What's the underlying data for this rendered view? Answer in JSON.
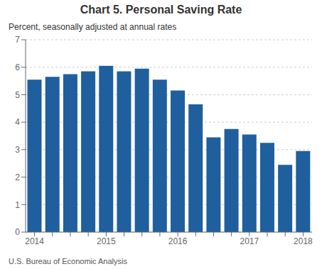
{
  "chart_data": {
    "type": "bar",
    "title": "Chart 5. Personal Saving Rate",
    "subtitle": "Percent, seasonally adjusted at annual rates",
    "footnote": "U.S. Bureau of Economic Analysis",
    "categories": [
      "2014",
      null,
      null,
      null,
      "2015",
      null,
      null,
      null,
      "2016",
      null,
      null,
      null,
      "2017",
      null,
      null,
      "2018"
    ],
    "values": [
      5.55,
      5.65,
      5.75,
      5.85,
      6.05,
      5.85,
      5.95,
      5.55,
      5.15,
      4.65,
      3.45,
      3.75,
      3.55,
      3.25,
      2.45,
      2.95
    ],
    "color": "#1F5F9E",
    "ylim": [
      0,
      7
    ],
    "yticks": [
      0,
      1,
      2,
      3,
      4,
      5,
      6,
      7
    ],
    "grid": true
  }
}
